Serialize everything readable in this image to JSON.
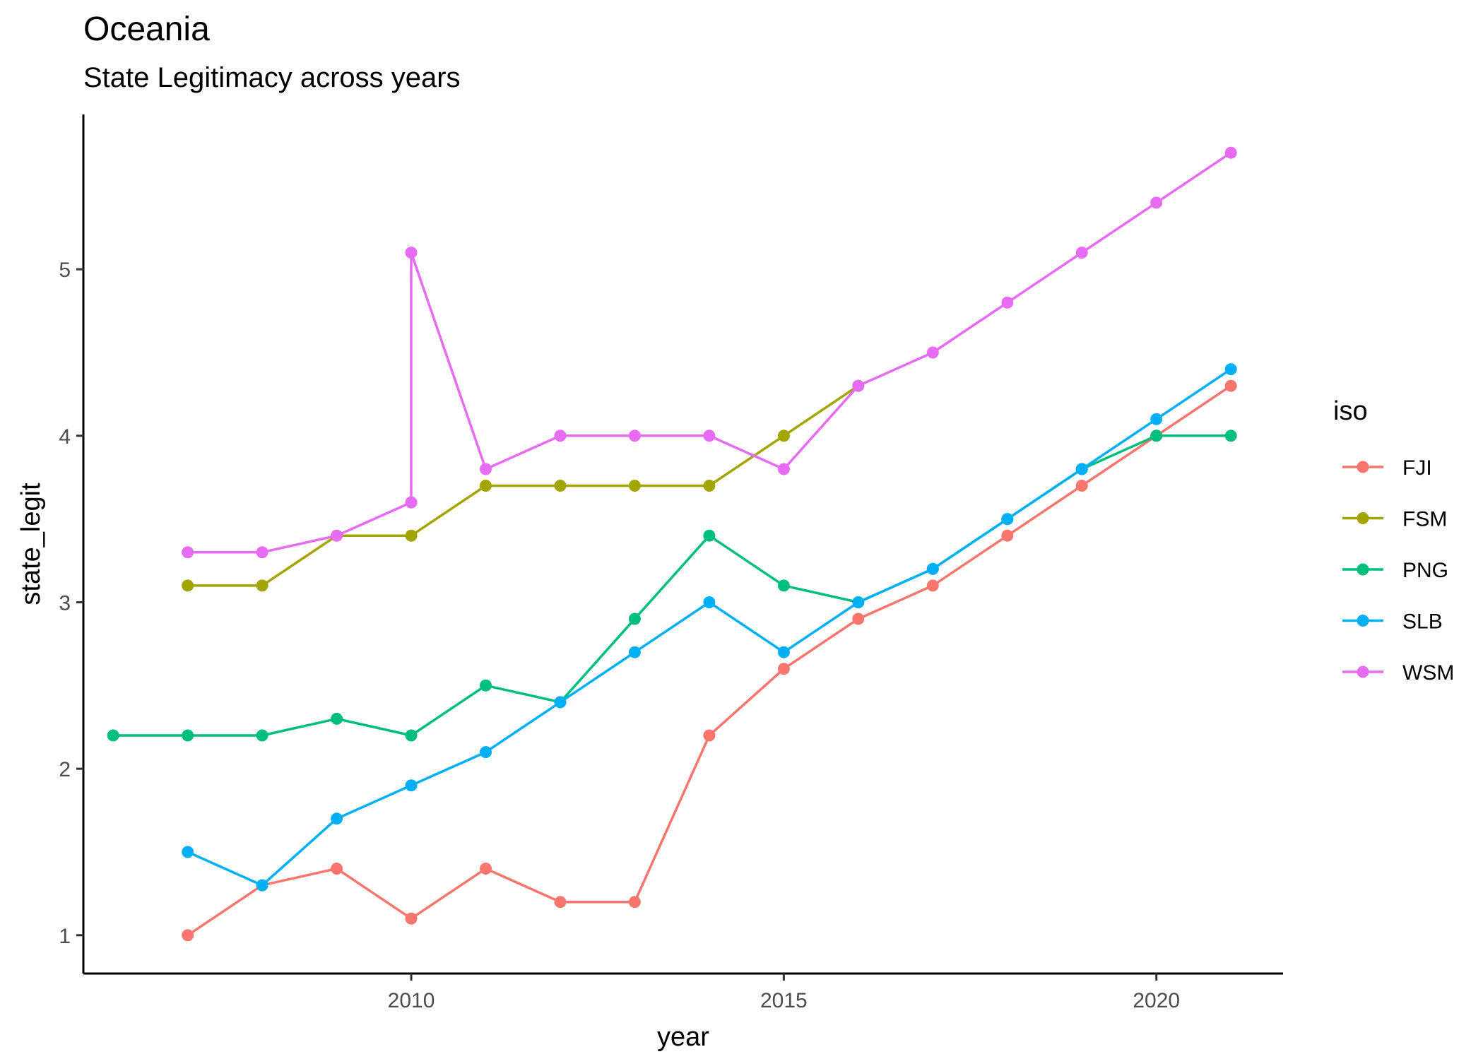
{
  "chart_data": {
    "type": "line",
    "title": "Oceania",
    "subtitle": "State Legitimacy across years",
    "xlabel": "year",
    "ylabel": "state_legit",
    "xlim": [
      2005.6,
      2021.7
    ],
    "ylim": [
      0.77,
      5.93
    ],
    "x_ticks": [
      2010,
      2015,
      2020
    ],
    "y_ticks": [
      1,
      2,
      3,
      4,
      5
    ],
    "grid": false,
    "legend": {
      "title": "iso",
      "position": "right"
    },
    "series": [
      {
        "name": "FJI",
        "color": "#F8766D",
        "points": [
          [
            2007,
            1.0
          ],
          [
            2008,
            1.3
          ],
          [
            2009,
            1.4
          ],
          [
            2010,
            1.1
          ],
          [
            2011,
            1.4
          ],
          [
            2012,
            1.2
          ],
          [
            2013,
            1.2
          ],
          [
            2014,
            2.2
          ],
          [
            2015,
            2.6
          ],
          [
            2016,
            2.9
          ],
          [
            2017,
            3.1
          ],
          [
            2018,
            3.4
          ],
          [
            2019,
            3.7
          ],
          [
            2020,
            4.0
          ],
          [
            2021,
            4.3
          ]
        ]
      },
      {
        "name": "FSM",
        "color": "#A3A500",
        "points": [
          [
            2007,
            3.1
          ],
          [
            2008,
            3.1
          ],
          [
            2009,
            3.4
          ],
          [
            2010,
            3.4
          ],
          [
            2011,
            3.7
          ],
          [
            2012,
            3.7
          ],
          [
            2013,
            3.7
          ],
          [
            2014,
            3.7
          ],
          [
            2015,
            4.0
          ],
          [
            2016,
            4.3
          ]
        ]
      },
      {
        "name": "PNG",
        "color": "#00BF7D",
        "points": [
          [
            2006,
            2.2
          ],
          [
            2007,
            2.2
          ],
          [
            2008,
            2.2
          ],
          [
            2009,
            2.3
          ],
          [
            2010,
            2.2
          ],
          [
            2011,
            2.5
          ],
          [
            2012,
            2.4
          ],
          [
            2013,
            2.9
          ],
          [
            2014,
            3.4
          ],
          [
            2015,
            3.1
          ],
          [
            2016,
            3.0
          ],
          [
            2017,
            3.2
          ],
          [
            2018,
            3.5
          ],
          [
            2019,
            3.8
          ],
          [
            2020,
            4.0
          ],
          [
            2021,
            4.0
          ]
        ]
      },
      {
        "name": "SLB",
        "color": "#00B0F6",
        "points": [
          [
            2007,
            1.5
          ],
          [
            2008,
            1.3
          ],
          [
            2009,
            1.7
          ],
          [
            2010,
            1.9
          ],
          [
            2011,
            2.1
          ],
          [
            2012,
            2.4
          ],
          [
            2013,
            2.7
          ],
          [
            2014,
            3.0
          ],
          [
            2015,
            2.7
          ],
          [
            2016,
            3.0
          ],
          [
            2017,
            3.2
          ],
          [
            2018,
            3.5
          ],
          [
            2019,
            3.8
          ],
          [
            2020,
            4.1
          ],
          [
            2021,
            4.4
          ]
        ]
      },
      {
        "name": "WSM",
        "color": "#E76BF3",
        "points": [
          [
            2007,
            3.3
          ],
          [
            2008,
            3.3
          ],
          [
            2009,
            3.4
          ],
          [
            2010,
            3.6
          ],
          [
            2010,
            5.1
          ],
          [
            2011,
            3.8
          ],
          [
            2012,
            4.0
          ],
          [
            2013,
            4.0
          ],
          [
            2014,
            4.0
          ],
          [
            2015,
            3.8
          ],
          [
            2016,
            4.3
          ],
          [
            2017,
            4.5
          ],
          [
            2018,
            4.8
          ],
          [
            2019,
            5.1
          ],
          [
            2020,
            5.4
          ],
          [
            2021,
            5.7
          ]
        ]
      }
    ]
  }
}
